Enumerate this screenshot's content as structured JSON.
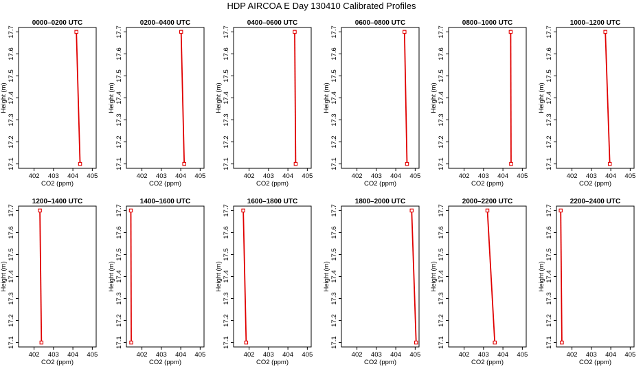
{
  "title": "HDP AIRCOA E  Day 130410  Calibrated Profiles",
  "style": {
    "line_color": "#e00000",
    "marker_color": "#e00000",
    "frame_color": "#000000"
  },
  "chart_data": [
    {
      "type": "line",
      "title": "0000–0200 UTC",
      "xlabel": "CO2 (ppm)",
      "ylabel": "Height (m)",
      "xlim": [
        401.2,
        405.2
      ],
      "ylim": [
        17.08,
        17.72
      ],
      "xticks": [
        402,
        403,
        404,
        405
      ],
      "yticks": [
        17.1,
        17.2,
        17.3,
        17.4,
        17.5,
        17.6,
        17.7
      ],
      "grid": false,
      "series": [
        {
          "x": [
            404.37,
            404.18
          ],
          "y": [
            17.1,
            17.7
          ]
        }
      ]
    },
    {
      "type": "line",
      "title": "0200–0400 UTC",
      "xlabel": "CO2 (ppm)",
      "ylabel": "Height (m)",
      "xlim": [
        401.2,
        405.2
      ],
      "ylim": [
        17.08,
        17.72
      ],
      "xticks": [
        402,
        403,
        404,
        405
      ],
      "yticks": [
        17.1,
        17.2,
        17.3,
        17.4,
        17.5,
        17.6,
        17.7
      ],
      "grid": false,
      "series": [
        {
          "x": [
            404.18,
            404.02
          ],
          "y": [
            17.1,
            17.7
          ]
        }
      ]
    },
    {
      "type": "line",
      "title": "0400–0600 UTC",
      "xlabel": "CO2 (ppm)",
      "ylabel": "Height (m)",
      "xlim": [
        401.2,
        405.2
      ],
      "ylim": [
        17.08,
        17.72
      ],
      "xticks": [
        402,
        403,
        404,
        405
      ],
      "yticks": [
        17.1,
        17.2,
        17.3,
        17.4,
        17.5,
        17.6,
        17.7
      ],
      "grid": false,
      "series": [
        {
          "x": [
            404.4,
            404.35
          ],
          "y": [
            17.1,
            17.7
          ]
        }
      ]
    },
    {
      "type": "line",
      "title": "0600–0800 UTC",
      "xlabel": "CO2 (ppm)",
      "ylabel": "Height (m)",
      "xlim": [
        401.2,
        405.2
      ],
      "ylim": [
        17.08,
        17.72
      ],
      "xticks": [
        402,
        403,
        404,
        405
      ],
      "yticks": [
        17.1,
        17.2,
        17.3,
        17.4,
        17.5,
        17.6,
        17.7
      ],
      "grid": false,
      "series": [
        {
          "x": [
            404.58,
            404.45
          ],
          "y": [
            17.1,
            17.7
          ]
        }
      ]
    },
    {
      "type": "line",
      "title": "0800–1000 UTC",
      "xlabel": "CO2 (ppm)",
      "ylabel": "Height (m)",
      "xlim": [
        401.2,
        405.2
      ],
      "ylim": [
        17.08,
        17.72
      ],
      "xticks": [
        402,
        403,
        404,
        405
      ],
      "yticks": [
        17.1,
        17.2,
        17.3,
        17.4,
        17.5,
        17.6,
        17.7
      ],
      "grid": false,
      "series": [
        {
          "x": [
            404.42,
            404.4
          ],
          "y": [
            17.1,
            17.7
          ]
        }
      ]
    },
    {
      "type": "line",
      "title": "1000–1200 UTC",
      "xlabel": "CO2 (ppm)",
      "ylabel": "Height (m)",
      "xlim": [
        401.2,
        405.2
      ],
      "ylim": [
        17.08,
        17.72
      ],
      "xticks": [
        402,
        403,
        404,
        405
      ],
      "yticks": [
        17.1,
        17.2,
        17.3,
        17.4,
        17.5,
        17.6,
        17.7
      ],
      "grid": false,
      "series": [
        {
          "x": [
            403.95,
            403.72
          ],
          "y": [
            17.1,
            17.7
          ]
        }
      ]
    },
    {
      "type": "line",
      "title": "1200–1400 UTC",
      "xlabel": "CO2 (ppm)",
      "ylabel": "Height (m)",
      "xlim": [
        401.2,
        405.2
      ],
      "ylim": [
        17.08,
        17.72
      ],
      "xticks": [
        402,
        403,
        404,
        405
      ],
      "yticks": [
        17.1,
        17.2,
        17.3,
        17.4,
        17.5,
        17.6,
        17.7
      ],
      "grid": false,
      "series": [
        {
          "x": [
            402.38,
            402.3
          ],
          "y": [
            17.1,
            17.7
          ]
        }
      ]
    },
    {
      "type": "line",
      "title": "1400–1600 UTC",
      "xlabel": "CO2 (ppm)",
      "ylabel": "Height (m)",
      "xlim": [
        401.2,
        405.2
      ],
      "ylim": [
        17.08,
        17.72
      ],
      "xticks": [
        402,
        403,
        404,
        405
      ],
      "yticks": [
        17.1,
        17.2,
        17.3,
        17.4,
        17.5,
        17.6,
        17.7
      ],
      "grid": false,
      "series": [
        {
          "x": [
            401.45,
            401.43
          ],
          "y": [
            17.1,
            17.7
          ]
        }
      ]
    },
    {
      "type": "line",
      "title": "1600–1800 UTC",
      "xlabel": "CO2 (ppm)",
      "ylabel": "Height (m)",
      "xlim": [
        401.2,
        405.2
      ],
      "ylim": [
        17.08,
        17.72
      ],
      "xticks": [
        402,
        403,
        404,
        405
      ],
      "yticks": [
        17.1,
        17.2,
        17.3,
        17.4,
        17.5,
        17.6,
        17.7
      ],
      "grid": false,
      "series": [
        {
          "x": [
            401.85,
            401.7
          ],
          "y": [
            17.1,
            17.7
          ]
        }
      ]
    },
    {
      "type": "line",
      "title": "1800–2000 UTC",
      "xlabel": "CO2 (ppm)",
      "ylabel": "Height (m)",
      "xlim": [
        401.2,
        405.2
      ],
      "ylim": [
        17.08,
        17.72
      ],
      "xticks": [
        402,
        403,
        404,
        405
      ],
      "yticks": [
        17.1,
        17.2,
        17.3,
        17.4,
        17.5,
        17.6,
        17.7
      ],
      "grid": false,
      "series": [
        {
          "x": [
            405.05,
            404.82
          ],
          "y": [
            17.1,
            17.7
          ]
        }
      ]
    },
    {
      "type": "line",
      "title": "2000–2200 UTC",
      "xlabel": "CO2 (ppm)",
      "ylabel": "Height (m)",
      "xlim": [
        401.2,
        405.2
      ],
      "ylim": [
        17.08,
        17.72
      ],
      "xticks": [
        402,
        403,
        404,
        405
      ],
      "yticks": [
        17.1,
        17.2,
        17.3,
        17.4,
        17.5,
        17.6,
        17.7
      ],
      "grid": false,
      "series": [
        {
          "x": [
            403.58,
            403.2
          ],
          "y": [
            17.1,
            17.7
          ]
        }
      ]
    },
    {
      "type": "line",
      "title": "2200–2400 UTC",
      "xlabel": "CO2 (ppm)",
      "ylabel": "Height (m)",
      "xlim": [
        401.2,
        405.2
      ],
      "ylim": [
        17.08,
        17.72
      ],
      "xticks": [
        402,
        403,
        404,
        405
      ],
      "yticks": [
        17.1,
        17.2,
        17.3,
        17.4,
        17.5,
        17.6,
        17.7
      ],
      "grid": false,
      "series": [
        {
          "x": [
            401.48,
            401.42
          ],
          "y": [
            17.1,
            17.7
          ]
        }
      ]
    }
  ]
}
